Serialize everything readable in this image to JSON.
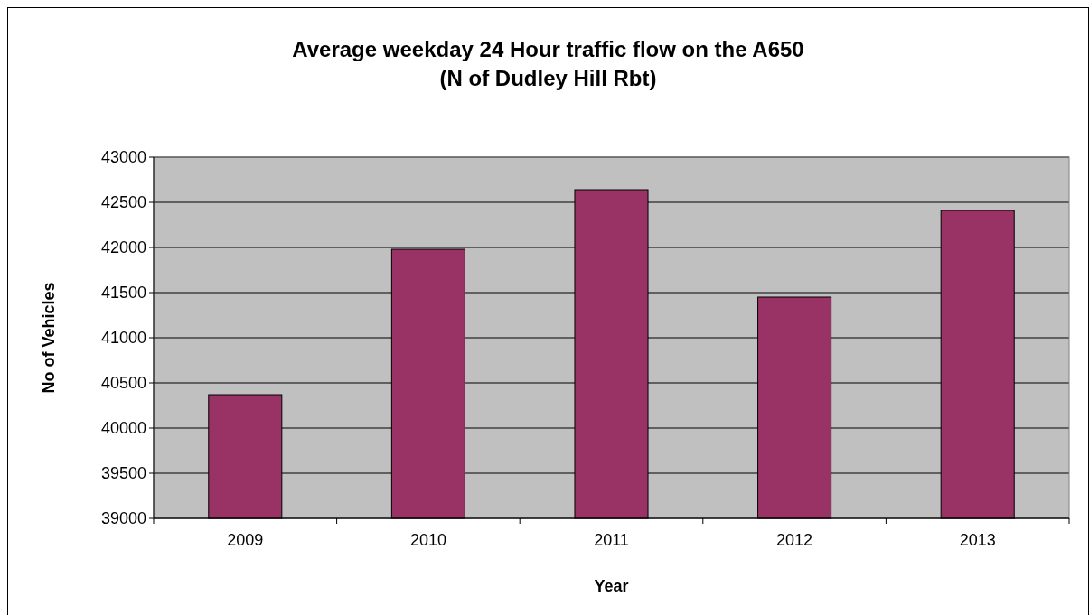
{
  "chart_data": {
    "type": "bar",
    "title": "Average weekday 24 Hour traffic flow on the A650\n(N of Dudley Hill Rbt)",
    "xlabel": "Year",
    "ylabel": "No of Vehicles",
    "categories": [
      "2009",
      "2010",
      "2011",
      "2012",
      "2013"
    ],
    "values": [
      40370,
      41980,
      42640,
      41450,
      42410
    ],
    "color": "#993366",
    "ylim": [
      39000,
      43000
    ],
    "yticks": [
      39000,
      39500,
      40000,
      40500,
      41000,
      41500,
      42000,
      42500,
      43000
    ],
    "grid": "y"
  }
}
